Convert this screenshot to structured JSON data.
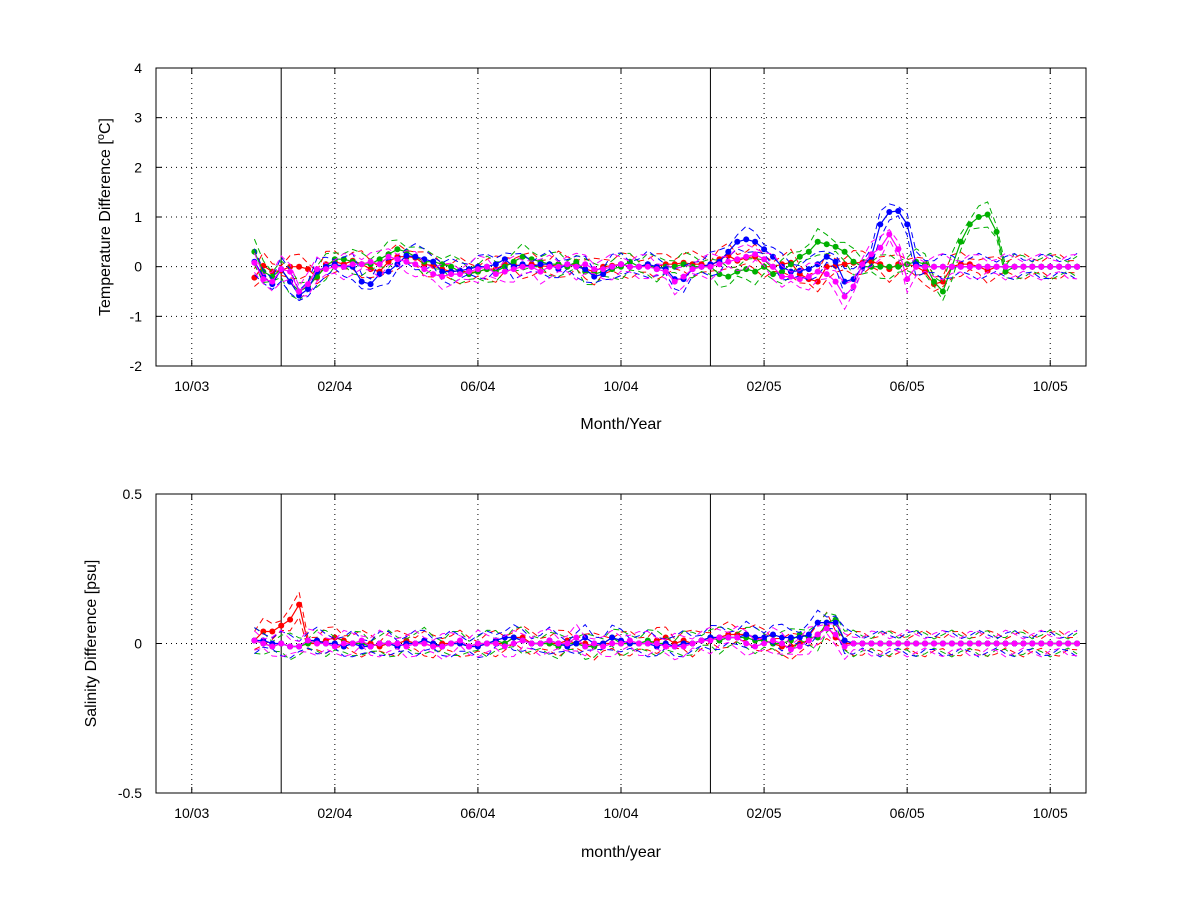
{
  "colors": {
    "red": "#ff0000",
    "green": "#00b000",
    "blue": "#0000ff",
    "magenta": "#ff00ff",
    "navy": "#000080",
    "darkred": "#8b0000",
    "background": "#ffffff",
    "axis": "#000000"
  },
  "chart_data": [
    {
      "type": "line",
      "xlabel": "Month/Year",
      "ylabel_text": "Temperature Difference [",
      "ylabel_sup": "o",
      "ylabel_unit": "C]",
      "ylim": [
        -2,
        4
      ],
      "yticks": [
        -2,
        -1,
        0,
        1,
        2,
        3,
        4
      ],
      "xlim": [
        0,
        26
      ],
      "xticks": [
        {
          "x": 1,
          "label": "10/03"
        },
        {
          "x": 5,
          "label": "02/04"
        },
        {
          "x": 9,
          "label": "06/04"
        },
        {
          "x": 13,
          "label": "10/04"
        },
        {
          "x": 17,
          "label": "02/05"
        },
        {
          "x": 21,
          "label": "06/05"
        },
        {
          "x": 25,
          "label": "10/05"
        }
      ],
      "vlines": [
        3.5,
        15.5
      ],
      "grid": true,
      "x": [
        2.75,
        3.0,
        3.25,
        3.5,
        3.75,
        4.0,
        4.25,
        4.5,
        4.75,
        5.0,
        5.25,
        5.5,
        5.75,
        6.0,
        6.25,
        6.5,
        6.75,
        7.0,
        7.25,
        7.5,
        7.75,
        8.0,
        8.25,
        8.5,
        8.75,
        9.0,
        9.25,
        9.5,
        9.75,
        10.0,
        10.25,
        10.5,
        10.75,
        11.0,
        11.25,
        11.5,
        11.75,
        12.0,
        12.25,
        12.5,
        12.75,
        13.0,
        13.25,
        13.5,
        13.75,
        14.0,
        14.25,
        14.5,
        14.75,
        15.0,
        15.25,
        15.5,
        15.75,
        16.0,
        16.25,
        16.5,
        16.75,
        17.0,
        17.25,
        17.5,
        17.75,
        18.0,
        18.25,
        18.5,
        18.75,
        19.0,
        19.25,
        19.5,
        19.75,
        20.0,
        20.25,
        20.5,
        20.75,
        21.0,
        21.25,
        21.5,
        21.75,
        22.0,
        22.25,
        22.5,
        22.75,
        23.0,
        23.25,
        23.5,
        23.75,
        24.0,
        24.25,
        24.5,
        24.75,
        25.0,
        25.25,
        25.5,
        25.75
      ],
      "series": [
        {
          "color": "red",
          "values": [
            -0.22,
            0.02,
            -0.1,
            -0.08,
            0.0,
            0.0,
            -0.05,
            -0.22,
            0.05,
            0.1,
            0.05,
            0.12,
            0.05,
            -0.05,
            -0.1,
            0.1,
            0.2,
            0.2,
            0.18,
            0.05,
            0.02,
            -0.05,
            -0.1,
            -0.08,
            -0.12,
            -0.1,
            -0.05,
            -0.05,
            0.05,
            0.05,
            0.0,
            0.05,
            0.02,
            0.0,
            0.05,
            0.0,
            0.05,
            -0.05,
            -0.1,
            0.0,
            0.02,
            0.05,
            0.0,
            0.0,
            0.02,
            0.0,
            0.05,
            0.05,
            0.08,
            0.05,
            0.05,
            0.0,
            0.15,
            0.22,
            0.12,
            0.18,
            0.2,
            0.0,
            0.0,
            0.05,
            0.08,
            -0.15,
            -0.25,
            -0.3,
            0.0,
            0.02,
            0.05,
            0.08,
            0.08,
            0.1,
            0.05,
            -0.05,
            0.05,
            0.05,
            0.0,
            -0.1,
            -0.35,
            -0.3,
            0.0,
            0.05,
            0.05,
            0.0,
            -0.08,
            0.0,
            0.0,
            0.0,
            0.0,
            0.0,
            0.0,
            0.0,
            0.0,
            0.0,
            0.0
          ]
        },
        {
          "color": "green",
          "values": [
            0.3,
            -0.1,
            -0.2,
            -0.05,
            -0.3,
            -0.5,
            -0.4,
            -0.2,
            0.0,
            0.15,
            0.15,
            0.1,
            0.05,
            0.05,
            0.15,
            0.25,
            0.35,
            0.3,
            0.2,
            0.1,
            0.1,
            0.05,
            0.0,
            -0.1,
            -0.15,
            -0.1,
            -0.05,
            -0.1,
            0.0,
            0.1,
            0.2,
            0.15,
            0.1,
            0.05,
            0.05,
            0.0,
            0.1,
            -0.1,
            -0.15,
            -0.1,
            -0.05,
            0.0,
            0.1,
            0.0,
            0.05,
            -0.05,
            0.0,
            0.0,
            0.05,
            0.0,
            0.0,
            0.0,
            -0.15,
            -0.2,
            -0.1,
            -0.05,
            -0.1,
            0.0,
            -0.15,
            -0.1,
            0.05,
            0.2,
            0.3,
            0.5,
            0.45,
            0.4,
            0.3,
            0.1,
            0.0,
            0.0,
            0.0,
            0.0,
            0.0,
            0.05,
            0.1,
            0.05,
            -0.3,
            -0.5,
            0.0,
            0.5,
            0.85,
            1.0,
            1.05,
            0.7,
            -0.1,
            0.0,
            0.0,
            0.0,
            0.0,
            0.0,
            0.0,
            0.0,
            0.0
          ]
        },
        {
          "color": "blue",
          "values": [
            0.1,
            -0.2,
            -0.35,
            -0.05,
            -0.3,
            -0.58,
            -0.45,
            -0.1,
            0.0,
            0.05,
            0.0,
            0.0,
            -0.3,
            -0.35,
            -0.15,
            -0.1,
            0.05,
            0.22,
            0.2,
            0.15,
            0.1,
            -0.1,
            -0.1,
            -0.08,
            -0.05,
            0.0,
            0.0,
            0.05,
            0.15,
            0.0,
            0.05,
            0.0,
            0.05,
            0.05,
            -0.05,
            0.05,
            0.0,
            -0.05,
            -0.2,
            -0.15,
            0.0,
            0.05,
            0.0,
            0.0,
            0.05,
            0.0,
            -0.05,
            -0.25,
            -0.25,
            -0.05,
            0.0,
            0.05,
            0.1,
            0.3,
            0.5,
            0.55,
            0.5,
            0.35,
            0.2,
            0.0,
            -0.1,
            -0.08,
            -0.05,
            0.05,
            0.2,
            0.1,
            -0.3,
            -0.25,
            0.0,
            0.2,
            0.85,
            1.1,
            1.12,
            0.85,
            0.05,
            0.0,
            0.0,
            0.0,
            0.0,
            0.0,
            0.0,
            0.0,
            0.0,
            0.0,
            0.0,
            0.0,
            0.0,
            0.0,
            0.0,
            0.0,
            0.0,
            0.0,
            0.0
          ]
        },
        {
          "color": "magenta",
          "values": [
            0.08,
            -0.25,
            -0.3,
            -0.05,
            -0.1,
            -0.5,
            -0.35,
            -0.05,
            -0.05,
            0.0,
            0.0,
            0.05,
            0.05,
            0.1,
            0.05,
            0.2,
            0.15,
            0.1,
            0.05,
            -0.05,
            -0.15,
            -0.2,
            -0.15,
            -0.15,
            -0.1,
            -0.05,
            0.0,
            -0.15,
            -0.1,
            -0.05,
            0.0,
            0.0,
            -0.1,
            0.0,
            0.0,
            0.05,
            0.0,
            0.05,
            -0.05,
            -0.05,
            0.0,
            0.05,
            0.0,
            0.0,
            0.0,
            -0.05,
            -0.1,
            -0.3,
            -0.2,
            -0.05,
            0.0,
            0.0,
            0.05,
            0.1,
            0.15,
            0.2,
            0.25,
            0.15,
            0.0,
            -0.2,
            -0.2,
            -0.25,
            -0.2,
            -0.1,
            -0.15,
            -0.3,
            -0.6,
            -0.4,
            0.05,
            0.25,
            0.38,
            0.65,
            0.35,
            -0.25,
            0.0,
            0.0,
            0.0,
            0.0,
            0.0,
            0.0,
            0.0,
            0.0,
            0.0,
            0.0,
            0.0,
            0.0,
            0.0,
            0.0,
            0.0,
            0.0,
            0.0,
            0.0,
            0.0
          ]
        }
      ]
    },
    {
      "type": "line",
      "xlabel": "month/year",
      "ylabel_text": "Salinity Difference [psu]",
      "ylim": [
        -0.5,
        0.5
      ],
      "yticks": [
        -0.5,
        0,
        0.5
      ],
      "xlim": [
        0,
        26
      ],
      "xticks": [
        {
          "x": 1,
          "label": "10/03"
        },
        {
          "x": 5,
          "label": "02/04"
        },
        {
          "x": 9,
          "label": "06/04"
        },
        {
          "x": 13,
          "label": "10/04"
        },
        {
          "x": 17,
          "label": "02/05"
        },
        {
          "x": 21,
          "label": "06/05"
        },
        {
          "x": 25,
          "label": "10/05"
        }
      ],
      "vlines": [
        3.5,
        15.5
      ],
      "grid": true,
      "x": [
        2.75,
        3.0,
        3.25,
        3.5,
        3.75,
        4.0,
        4.25,
        4.5,
        4.75,
        5.0,
        5.25,
        5.5,
        5.75,
        6.0,
        6.25,
        6.5,
        6.75,
        7.0,
        7.25,
        7.5,
        7.75,
        8.0,
        8.25,
        8.5,
        8.75,
        9.0,
        9.25,
        9.5,
        9.75,
        10.0,
        10.25,
        10.5,
        10.75,
        11.0,
        11.25,
        11.5,
        11.75,
        12.0,
        12.25,
        12.5,
        12.75,
        13.0,
        13.25,
        13.5,
        13.75,
        14.0,
        14.25,
        14.5,
        14.75,
        15.0,
        15.25,
        15.5,
        15.75,
        16.0,
        16.25,
        16.5,
        16.75,
        17.0,
        17.25,
        17.5,
        17.75,
        18.0,
        18.25,
        18.5,
        18.75,
        19.0,
        19.25,
        19.5,
        19.75,
        20.0,
        20.25,
        20.5,
        20.75,
        21.0,
        21.25,
        21.5,
        21.75,
        22.0,
        22.25,
        22.5,
        22.75,
        23.0,
        23.25,
        23.5,
        23.75,
        24.0,
        24.25,
        24.5,
        24.75,
        25.0,
        25.25,
        25.5,
        25.75
      ],
      "series": [
        {
          "color": "red",
          "values": [
            0.01,
            0.04,
            0.04,
            0.06,
            0.08,
            0.13,
            0.0,
            0.0,
            0.01,
            0.02,
            0.01,
            0.0,
            0.0,
            0.0,
            -0.01,
            0.0,
            0.0,
            0.01,
            0.0,
            0.0,
            -0.01,
            0.0,
            0.0,
            0.0,
            -0.01,
            -0.01,
            0.0,
            0.0,
            0.0,
            0.02,
            0.02,
            0.0,
            0.0,
            0.0,
            0.0,
            0.01,
            0.0,
            0.0,
            -0.01,
            0.0,
            0.0,
            0.0,
            0.0,
            0.0,
            0.0,
            0.01,
            0.02,
            0.0,
            0.01,
            0.0,
            0.01,
            0.02,
            0.02,
            0.03,
            0.03,
            0.03,
            0.02,
            0.01,
            0.0,
            -0.01,
            -0.01,
            0.0,
            0.01,
            0.03,
            0.06,
            0.02,
            0.0,
            0.0,
            0.0,
            0.0,
            0.0,
            0.0,
            0.0,
            0.0,
            0.0,
            0.0,
            0.0,
            0.0,
            0.0,
            0.0,
            0.0,
            0.0,
            0.0,
            0.0,
            0.0,
            0.0,
            0.0,
            0.0,
            0.0,
            0.0,
            0.0,
            0.0,
            0.0
          ]
        },
        {
          "color": "green",
          "values": [
            0.01,
            0.0,
            -0.01,
            0.0,
            -0.01,
            -0.01,
            0.0,
            0.01,
            0.0,
            0.0,
            -0.01,
            0.0,
            0.0,
            -0.01,
            0.0,
            0.0,
            -0.01,
            0.0,
            0.0,
            0.01,
            0.0,
            -0.01,
            0.0,
            0.0,
            -0.01,
            0.0,
            0.0,
            0.01,
            0.0,
            0.02,
            0.01,
            0.0,
            0.0,
            0.0,
            -0.01,
            0.0,
            0.0,
            -0.01,
            -0.01,
            0.0,
            0.02,
            0.0,
            0.0,
            0.0,
            0.01,
            0.0,
            0.0,
            -0.01,
            0.0,
            0.0,
            0.01,
            0.02,
            0.01,
            0.02,
            0.02,
            0.02,
            0.01,
            0.01,
            0.0,
            0.0,
            0.01,
            0.03,
            0.02,
            0.02,
            0.07,
            0.08,
            0.01,
            0.0,
            0.0,
            0.0,
            0.0,
            0.0,
            0.0,
            0.0,
            0.0,
            0.0,
            0.0,
            0.0,
            0.0,
            0.0,
            0.0,
            0.0,
            0.0,
            0.0,
            0.0,
            0.0,
            0.0,
            0.0,
            0.0,
            0.0,
            0.0,
            0.0,
            0.0
          ]
        },
        {
          "color": "blue",
          "values": [
            0.01,
            0.01,
            0.0,
            0.0,
            -0.01,
            -0.01,
            0.01,
            0.01,
            0.0,
            0.0,
            -0.01,
            0.0,
            -0.01,
            -0.01,
            0.0,
            0.0,
            -0.01,
            0.0,
            0.0,
            0.01,
            0.0,
            -0.01,
            0.0,
            0.0,
            -0.01,
            -0.01,
            0.0,
            0.01,
            0.02,
            0.02,
            0.01,
            0.0,
            0.0,
            0.01,
            0.0,
            -0.01,
            0.0,
            0.02,
            0.0,
            0.0,
            0.02,
            0.01,
            0.0,
            0.0,
            0.0,
            -0.01,
            0.0,
            -0.01,
            0.0,
            0.0,
            0.01,
            0.02,
            0.02,
            0.02,
            0.02,
            0.03,
            0.02,
            0.02,
            0.03,
            0.02,
            0.02,
            0.02,
            0.03,
            0.07,
            0.07,
            0.07,
            0.01,
            0.0,
            0.0,
            0.0,
            0.0,
            0.0,
            0.0,
            0.0,
            0.0,
            0.0,
            0.0,
            0.0,
            0.0,
            0.0,
            0.0,
            0.0,
            0.0,
            0.0,
            0.0,
            0.0,
            0.0,
            0.0,
            0.0,
            0.0,
            0.0,
            0.0,
            0.0
          ]
        },
        {
          "color": "magenta",
          "values": [
            0.01,
            0.0,
            -0.01,
            0.0,
            -0.01,
            -0.01,
            0.01,
            0.0,
            0.0,
            -0.01,
            0.0,
            0.0,
            0.01,
            -0.01,
            0.0,
            0.0,
            0.0,
            -0.01,
            0.0,
            0.0,
            -0.01,
            -0.01,
            0.0,
            0.01,
            -0.01,
            0.0,
            0.0,
            0.0,
            -0.01,
            0.0,
            0.01,
            0.0,
            0.0,
            0.01,
            0.0,
            0.0,
            0.02,
            -0.01,
            0.0,
            -0.01,
            0.0,
            0.0,
            0.01,
            0.0,
            0.0,
            0.0,
            -0.01,
            -0.01,
            -0.01,
            0.0,
            0.01,
            0.01,
            0.02,
            0.02,
            0.02,
            0.0,
            -0.01,
            0.0,
            0.01,
            0.0,
            -0.02,
            -0.01,
            0.01,
            0.03,
            0.05,
            0.03,
            -0.01,
            0.0,
            0.0,
            0.0,
            0.0,
            0.0,
            0.0,
            0.0,
            0.0,
            0.0,
            0.0,
            0.0,
            0.0,
            0.0,
            0.0,
            0.0,
            0.0,
            0.0,
            0.0,
            0.0,
            0.0,
            0.0,
            0.0,
            0.0,
            0.0,
            0.0,
            0.0
          ]
        }
      ]
    }
  ]
}
